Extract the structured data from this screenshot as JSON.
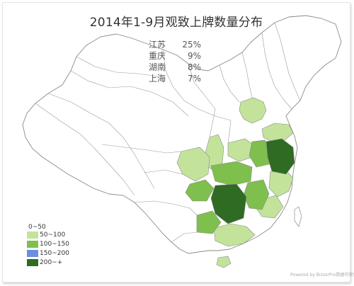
{
  "title": "2014年1-9月观致上牌数量分布",
  "stats": [
    {
      "province": "江苏",
      "percent": "25%"
    },
    {
      "province": "重庆",
      "percent": "9%"
    },
    {
      "province": "湖南",
      "percent": "8%"
    },
    {
      "province": "上海",
      "percent": "7%"
    }
  ],
  "legend": {
    "head": "0~50",
    "items": [
      {
        "label": "50~100",
        "color": "#c3e39b"
      },
      {
        "label": "100~150",
        "color": "#7fbf4d"
      },
      {
        "label": "150~200",
        "color": "#6b8fe0"
      },
      {
        "label": "200~+",
        "color": "#2f6b22"
      }
    ]
  },
  "colors": {
    "base": "#ffffff",
    "border": "#9a9a9a",
    "light": "#c3e39b",
    "medium": "#7fbf4d",
    "dark": "#2f6b22"
  },
  "credit": "Powered by BizzerPro数据可视化"
}
